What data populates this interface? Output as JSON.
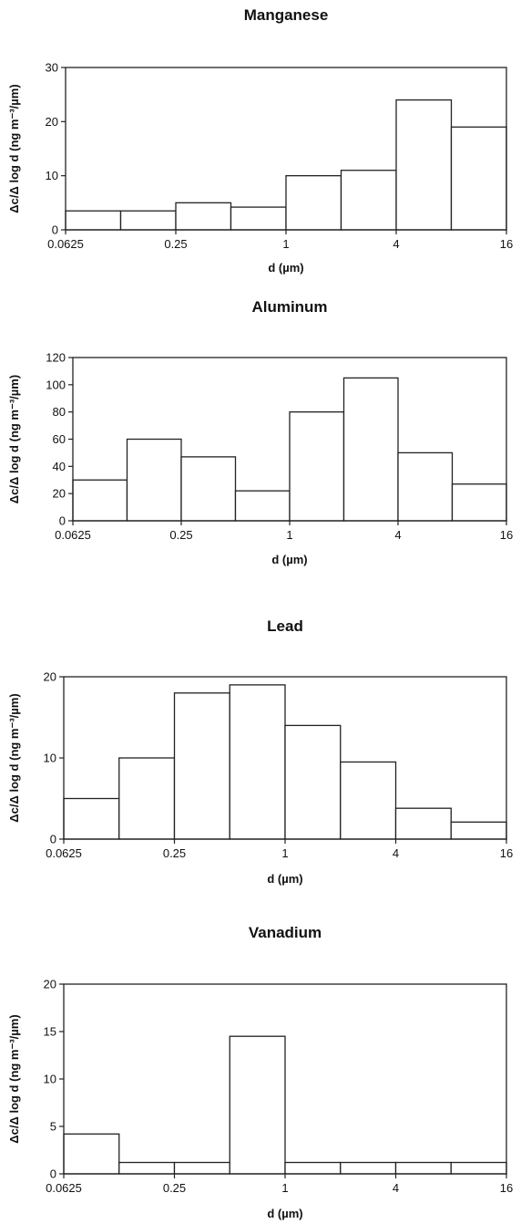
{
  "chart_data": [
    {
      "type": "bar",
      "title": "Manganese",
      "xlabel": "d (µm)",
      "ylabel": "Δc/Δ log d (ng m⁻³/µm)",
      "x_scale": "log2",
      "xlim": [
        0.0625,
        16
      ],
      "x_ticks": [
        "0.0625",
        "0.25",
        "1",
        "4",
        "16"
      ],
      "ylim": [
        0,
        30
      ],
      "y_ticks": [
        "0",
        "10",
        "20",
        "30"
      ],
      "bin_edges": [
        0.0625,
        0.125,
        0.25,
        0.5,
        1,
        2,
        4,
        8,
        16
      ],
      "values": [
        3.5,
        3.5,
        5,
        4.2,
        10,
        11,
        24,
        19
      ]
    },
    {
      "type": "bar",
      "title": "Aluminum",
      "xlabel": "d (µm)",
      "ylabel": "Δc/Δ log d (ng m⁻³/µm)",
      "x_scale": "log2",
      "xlim": [
        0.0625,
        16
      ],
      "x_ticks": [
        "0.0625",
        "0.25",
        "1",
        "4",
        "16"
      ],
      "ylim": [
        0,
        120
      ],
      "y_ticks": [
        "0",
        "20",
        "40",
        "60",
        "80",
        "100",
        "120"
      ],
      "bin_edges": [
        0.0625,
        0.125,
        0.25,
        0.5,
        1,
        2,
        4,
        8,
        16
      ],
      "values": [
        30,
        60,
        47,
        22,
        80,
        105,
        50,
        27
      ]
    },
    {
      "type": "bar",
      "title": "Lead",
      "xlabel": "d (µm)",
      "ylabel": "Δc/Δ log d (ng m⁻³/µm)",
      "x_scale": "log2",
      "xlim": [
        0.0625,
        16
      ],
      "x_ticks": [
        "0.0625",
        "0.25",
        "1",
        "4",
        "16"
      ],
      "ylim": [
        0,
        20
      ],
      "y_ticks": [
        "0",
        "10",
        "20"
      ],
      "bin_edges": [
        0.0625,
        0.125,
        0.25,
        0.5,
        1,
        2,
        4,
        8,
        16
      ],
      "values": [
        5,
        10,
        18,
        19,
        14,
        9.5,
        3.8,
        2.1
      ]
    },
    {
      "type": "bar",
      "title": "Vanadium",
      "xlabel": "d (µm)",
      "ylabel": "Δc/Δ log d (ng m⁻³/µm)",
      "x_scale": "log2",
      "xlim": [
        0.0625,
        16
      ],
      "x_ticks": [
        "0.0625",
        "0.25",
        "1",
        "4",
        "16"
      ],
      "ylim": [
        0,
        20
      ],
      "y_ticks": [
        "0",
        "5",
        "10",
        "15",
        "20"
      ],
      "bin_edges": [
        0.0625,
        0.125,
        0.25,
        0.5,
        1,
        2,
        4,
        8,
        16
      ],
      "values": [
        4.2,
        1.2,
        1.2,
        14.5,
        1.2,
        1.2,
        1.2,
        1.2
      ]
    }
  ]
}
